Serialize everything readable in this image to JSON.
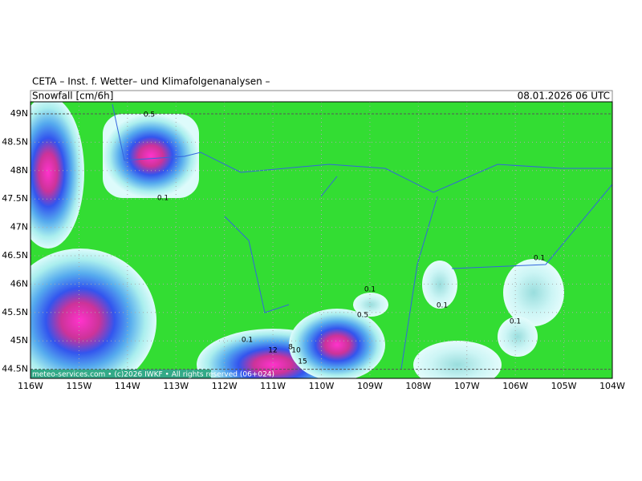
{
  "header": {
    "title": "CETA – Inst. f. Wetter– und Klimafolgenanalysen –",
    "subtitle": "Snowfall [cm/6h]",
    "date": "08.01.2026 06 UTC"
  },
  "axes": {
    "y_labels": [
      "49N",
      "48.5N",
      "48N",
      "47.5N",
      "47N",
      "46.5N",
      "46N",
      "45.5N",
      "45N",
      "44.5N"
    ],
    "x_labels": [
      "116W",
      "115W",
      "114W",
      "113W",
      "112W",
      "111W",
      "110W",
      "109W",
      "108W",
      "107W",
      "106W",
      "105W",
      "104W"
    ]
  },
  "footer": "meteo-services.com • (c)2026 IWKF • All rights reserved (06+024)",
  "contour_labels": [
    "0.5",
    "0.1",
    "0.1",
    "0.1",
    "0.5",
    "0.1",
    "0.1",
    "0.1",
    "8",
    "10",
    "12",
    "15"
  ]
}
